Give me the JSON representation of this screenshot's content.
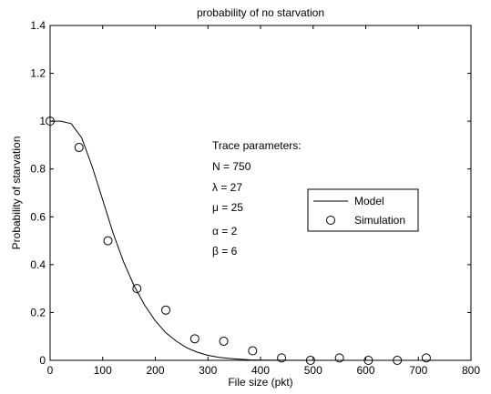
{
  "chart_data": {
    "type": "line",
    "title": "probability of no starvation",
    "xlabel": "File size (pkt)",
    "ylabel": "Probability of starvation",
    "xlim": [
      0,
      800
    ],
    "ylim": [
      0,
      1.4
    ],
    "xticks": [
      "0",
      "100",
      "200",
      "300",
      "400",
      "500",
      "600",
      "700",
      "800"
    ],
    "yticks": [
      "0",
      "0.2",
      "0.4",
      "0.6",
      "0.8",
      "1",
      "1.2",
      "1.4"
    ],
    "grid": false,
    "legend_position": "right",
    "annotations": {
      "heading": "Trace parameters:",
      "lines": [
        "N = 750",
        "λ = 27",
        "μ = 25",
        "α = 2",
        "β = 6"
      ]
    },
    "series": [
      {
        "name": "Model",
        "style": "solid-line",
        "x": [
          0,
          20,
          40,
          60,
          80,
          100,
          120,
          140,
          160,
          180,
          200,
          220,
          240,
          260,
          280,
          300,
          320,
          340,
          360,
          380,
          400,
          440,
          500,
          600,
          700,
          720
        ],
        "y": [
          1.0,
          1.0,
          0.99,
          0.93,
          0.81,
          0.67,
          0.53,
          0.41,
          0.31,
          0.23,
          0.165,
          0.115,
          0.08,
          0.052,
          0.034,
          0.021,
          0.013,
          0.008,
          0.005,
          0.002,
          0.001,
          0.0003,
          0,
          0,
          0,
          0
        ]
      },
      {
        "name": "Simulation",
        "style": "circle-markers",
        "x": [
          0,
          55,
          110,
          165,
          220,
          275,
          330,
          385,
          440,
          495,
          550,
          605,
          660,
          715
        ],
        "y": [
          1.0,
          0.89,
          0.5,
          0.3,
          0.21,
          0.09,
          0.08,
          0.04,
          0.01,
          0.0,
          0.01,
          0.0,
          0.0,
          0.01
        ]
      }
    ]
  }
}
